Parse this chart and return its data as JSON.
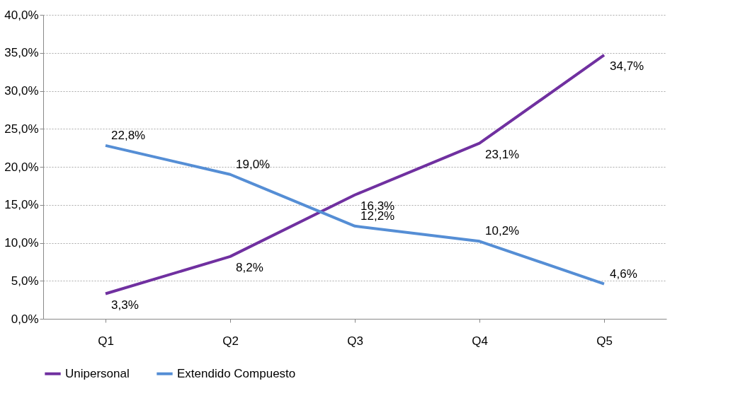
{
  "chart_data": {
    "type": "line",
    "categories": [
      "Q1",
      "Q2",
      "Q3",
      "Q4",
      "Q5"
    ],
    "series": [
      {
        "name": "Unipersonal",
        "color": "#7030a0",
        "values": [
          3.3,
          8.2,
          16.3,
          23.1,
          34.7
        ],
        "value_labels": [
          "3,3%",
          "8,2%",
          "16,3%",
          "23,1%",
          "34,7%"
        ]
      },
      {
        "name": "Extendido Compuesto",
        "color": "#558ed5",
        "values": [
          22.8,
          19.0,
          12.2,
          10.2,
          4.6
        ],
        "value_labels": [
          "22,8%",
          "19,0%",
          "12,2%",
          "10,2%",
          "4,6%"
        ]
      }
    ],
    "ylim": [
      0,
      40
    ],
    "yticks": [
      {
        "value": 0,
        "label": "0,0%"
      },
      {
        "value": 5,
        "label": "5,0%"
      },
      {
        "value": 10,
        "label": "10,0%"
      },
      {
        "value": 15,
        "label": "15,0%"
      },
      {
        "value": 20,
        "label": "20,0%"
      },
      {
        "value": 25,
        "label": "25,0%"
      },
      {
        "value": 30,
        "label": "30,0%"
      },
      {
        "value": 35,
        "label": "35,0%"
      },
      {
        "value": 40,
        "label": "40,0%"
      }
    ],
    "grid": "y",
    "legend": "bottom",
    "marker": "none",
    "line_style": "solid"
  }
}
